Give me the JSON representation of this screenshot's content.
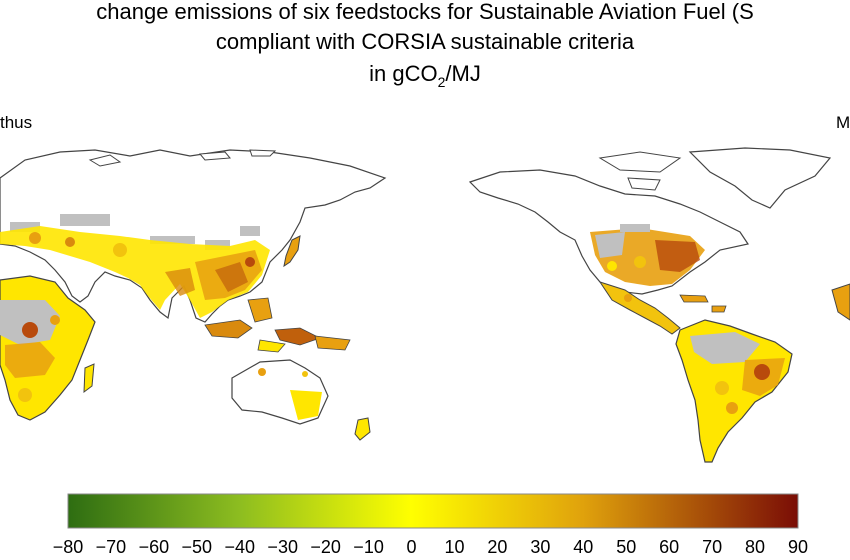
{
  "title": {
    "line1": "change emissions of six feedstocks for Sustainable Aviation Fuel (S",
    "line2": "compliant with CORSIA sustainable criteria",
    "line3_prefix": "in gCO",
    "line3_sub": "2",
    "line3_suffix": "/MJ"
  },
  "panels": {
    "left_label": "thus",
    "right_label": "M"
  },
  "colorbar": {
    "min": -80,
    "max": 90,
    "ticks": [
      "−80",
      "−70",
      "−60",
      "−50",
      "−40",
      "−30",
      "−20",
      "−10",
      "0",
      "10",
      "20",
      "30",
      "40",
      "50",
      "60",
      "70",
      "80",
      "90"
    ],
    "stops": [
      {
        "value": -80,
        "color": "#2e6d12"
      },
      {
        "value": -40,
        "color": "#8dbd20"
      },
      {
        "value": 0,
        "color": "#ffff00"
      },
      {
        "value": 40,
        "color": "#e0a20c"
      },
      {
        "value": 90,
        "color": "#7a0d06"
      }
    ]
  },
  "colors": {
    "land_outline": "#444444",
    "no_data": "#c0c0c0",
    "low": "#ffe600",
    "mid": "#e8a010",
    "high": "#b84a0c"
  }
}
